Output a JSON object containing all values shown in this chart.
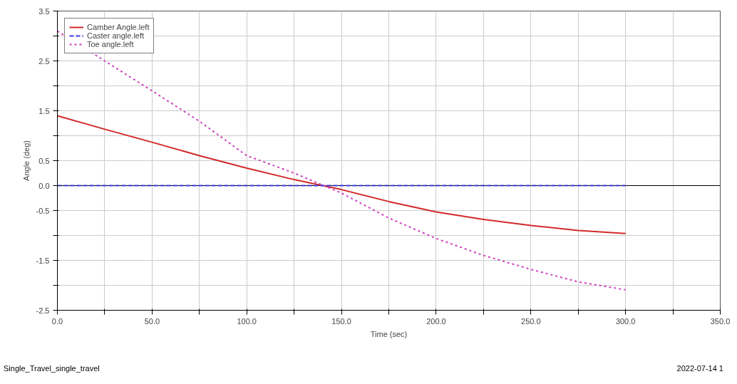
{
  "chart_data": {
    "type": "line",
    "xlabel": "Time (sec)",
    "ylabel": "Angle (deg)",
    "x": [
      0,
      25,
      50,
      75,
      100,
      125,
      150,
      175,
      200,
      225,
      250,
      275,
      300
    ],
    "series": [
      {
        "name": "Camber Angle.left",
        "color": "#d42a2a",
        "line_style": "solid",
        "values": [
          1.4,
          1.13,
          0.87,
          0.6,
          0.35,
          0.12,
          -0.08,
          -0.32,
          -0.53,
          -0.68,
          -0.8,
          -0.9,
          -0.96
        ]
      },
      {
        "name": "Caster angle.left",
        "color": "#3a3ae0",
        "line_style": "dashed",
        "values": [
          0,
          0,
          0,
          0,
          0,
          0,
          0,
          0,
          0,
          0,
          0,
          0,
          0
        ]
      },
      {
        "name": "Toe angle.left",
        "color": "#d040c0",
        "line_style": "dotted",
        "values": [
          3.1,
          2.5,
          1.9,
          1.29,
          0.6,
          0.25,
          -0.15,
          -0.65,
          -1.06,
          -1.4,
          -1.68,
          -1.93,
          -2.09
        ]
      }
    ],
    "xlim": [
      0,
      350
    ],
    "ylim": [
      -2.5,
      3.5
    ],
    "xticks": [
      {
        "value": 0,
        "label": "0.0"
      },
      {
        "value": 25,
        "label": null
      },
      {
        "value": 50,
        "label": "50.0"
      },
      {
        "value": 75,
        "label": null
      },
      {
        "value": 100,
        "label": "100.0"
      },
      {
        "value": 125,
        "label": null
      },
      {
        "value": 150,
        "label": "150.0"
      },
      {
        "value": 175,
        "label": null
      },
      {
        "value": 200,
        "label": "200.0"
      },
      {
        "value": 225,
        "label": null
      },
      {
        "value": 250,
        "label": "250.0"
      },
      {
        "value": 275,
        "label": null
      },
      {
        "value": 300,
        "label": "300.0"
      },
      {
        "value": 325,
        "label": null
      },
      {
        "value": 350,
        "label": "350.0"
      }
    ],
    "yticks": [
      {
        "value": -2.5,
        "label": "-2.5"
      },
      {
        "value": -2.0,
        "label": null
      },
      {
        "value": -1.5,
        "label": "-1.5"
      },
      {
        "value": -1.0,
        "label": null
      },
      {
        "value": -0.5,
        "label": "-0.5"
      },
      {
        "value": 0.0,
        "label": "0.0"
      },
      {
        "value": 0.5,
        "label": "0.5"
      },
      {
        "value": 1.0,
        "label": null
      },
      {
        "value": 1.5,
        "label": "1.5"
      },
      {
        "value": 2.0,
        "label": null
      },
      {
        "value": 2.5,
        "label": "2.5"
      },
      {
        "value": 3.0,
        "label": null
      },
      {
        "value": 3.5,
        "label": "3.5"
      }
    ],
    "ref_lines": [
      {
        "axis": "y",
        "value": 0,
        "color": "#000000"
      }
    ],
    "annotations": [
      "Single_Travel_single_travel",
      "2022-07-14 1"
    ],
    "grid": true,
    "legend": "top left",
    "marker": "none"
  }
}
